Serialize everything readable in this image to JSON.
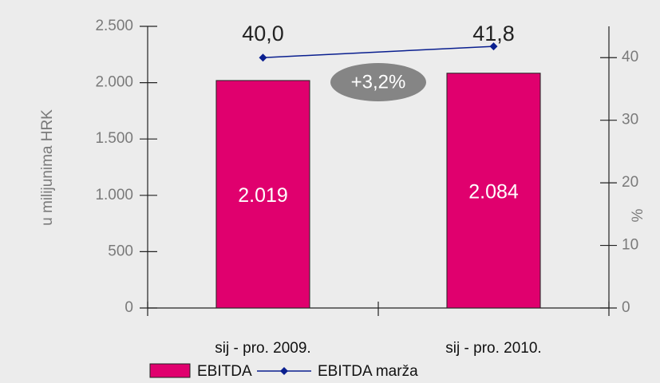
{
  "chart_data": {
    "type": "bar_line",
    "categories": [
      "sij - pro. 2009.",
      "sij - pro. 2010."
    ],
    "series": [
      {
        "name": "EBITDA",
        "color": "#e0006e",
        "type": "bar",
        "values": [
          2019,
          2084
        ],
        "value_labels": [
          "2.019",
          "2.084"
        ]
      },
      {
        "name": "EBITDA marža",
        "color": "#0a1f8f",
        "type": "line",
        "axis": "y2",
        "values": [
          40.0,
          41.8
        ],
        "value_labels": [
          "40,0",
          "41,8"
        ]
      }
    ],
    "ylabel": "u milijunima HRK",
    "y2label": "%",
    "ylim": [
      0,
      2500
    ],
    "yticks": [
      0,
      500,
      {
        "value": 1000,
        "label": "1.000"
      },
      {
        "value": 1500,
        "label": "1.500"
      },
      {
        "value": 2000,
        "label": "2.000"
      },
      {
        "value": 2500,
        "label": "2.500"
      }
    ],
    "y2lim": [
      0,
      45
    ],
    "y2ticks": [
      0,
      10,
      20,
      30,
      40
    ],
    "annotation": "+3,2%",
    "legend": "bottom"
  }
}
